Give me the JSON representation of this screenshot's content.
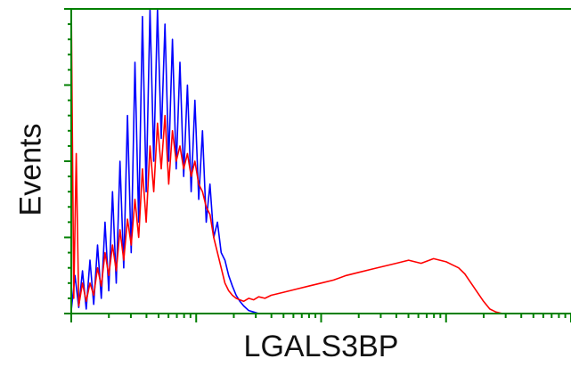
{
  "chart_data": {
    "type": "line",
    "title": "",
    "xlabel": "LGALS3BP",
    "ylabel": "Events",
    "xscale": "log",
    "x_decades": 4,
    "ylim": [
      0,
      200
    ],
    "grid": false,
    "legend": "none",
    "axis_color": "#008000",
    "series": [
      {
        "color": "#0000ff",
        "x": [
          0.0,
          0.03,
          0.06,
          0.09,
          0.12,
          0.15,
          0.18,
          0.21,
          0.24,
          0.27,
          0.3,
          0.33,
          0.36,
          0.39,
          0.42,
          0.45,
          0.48,
          0.51,
          0.54,
          0.57,
          0.6,
          0.63,
          0.66,
          0.69,
          0.72,
          0.75,
          0.78,
          0.81,
          0.84,
          0.87,
          0.9,
          0.93,
          0.96,
          0.99,
          1.02,
          1.05,
          1.08,
          1.11,
          1.14,
          1.17,
          1.2,
          1.23,
          1.26,
          1.29,
          1.32,
          1.35,
          1.38,
          1.42,
          1.46,
          1.5,
          1.55,
          1.6,
          1.7,
          1.8,
          1.9,
          2.0,
          2.2,
          2.5,
          3.0,
          3.5,
          4.0
        ],
        "y": [
          2,
          25,
          4,
          28,
          3,
          35,
          6,
          45,
          10,
          60,
          15,
          80,
          20,
          100,
          30,
          130,
          40,
          165,
          60,
          195,
          80,
          200,
          100,
          200,
          115,
          190,
          100,
          180,
          95,
          165,
          90,
          150,
          80,
          140,
          75,
          120,
          60,
          85,
          50,
          60,
          40,
          35,
          25,
          18,
          12,
          8,
          5,
          2,
          1,
          0,
          0,
          0,
          0,
          0,
          0,
          0,
          0,
          0,
          0,
          0,
          0
        ]
      },
      {
        "color": "#ff0000",
        "x": [
          0.0,
          0.02,
          0.04,
          0.06,
          0.09,
          0.12,
          0.15,
          0.18,
          0.21,
          0.24,
          0.27,
          0.3,
          0.33,
          0.36,
          0.39,
          0.42,
          0.45,
          0.48,
          0.51,
          0.54,
          0.57,
          0.6,
          0.63,
          0.66,
          0.69,
          0.72,
          0.75,
          0.78,
          0.81,
          0.84,
          0.87,
          0.9,
          0.93,
          0.96,
          0.99,
          1.02,
          1.05,
          1.08,
          1.11,
          1.14,
          1.17,
          1.2,
          1.23,
          1.26,
          1.29,
          1.32,
          1.35,
          1.38,
          1.42,
          1.46,
          1.5,
          1.55,
          1.6,
          1.7,
          1.8,
          1.9,
          2.0,
          2.1,
          2.2,
          2.3,
          2.4,
          2.5,
          2.6,
          2.7,
          2.8,
          2.9,
          3.0,
          3.05,
          3.1,
          3.15,
          3.2,
          3.25,
          3.3,
          3.35,
          3.4,
          3.45,
          3.5,
          3.55,
          3.6,
          3.65,
          3.7,
          3.75,
          3.8,
          3.9,
          4.0
        ],
        "y": [
          205,
          10,
          105,
          5,
          20,
          8,
          20,
          12,
          30,
          18,
          40,
          25,
          45,
          28,
          55,
          35,
          62,
          45,
          75,
          50,
          95,
          60,
          110,
          80,
          125,
          95,
          130,
          85,
          120,
          100,
          110,
          95,
          105,
          90,
          100,
          85,
          80,
          70,
          65,
          50,
          40,
          30,
          20,
          15,
          12,
          10,
          9,
          8,
          10,
          9,
          11,
          10,
          12,
          14,
          16,
          18,
          20,
          22,
          25,
          27,
          29,
          31,
          33,
          35,
          33,
          36,
          34,
          32,
          30,
          26,
          20,
          14,
          8,
          3,
          1,
          0,
          0,
          0,
          0,
          0,
          0,
          0,
          0,
          0,
          0
        ]
      }
    ]
  }
}
